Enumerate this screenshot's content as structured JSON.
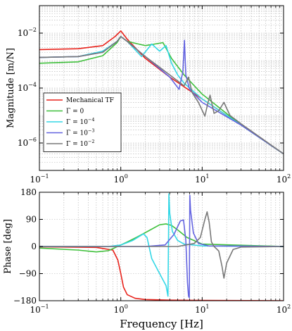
{
  "chart_data": [
    {
      "type": "line",
      "panel": "magnitude",
      "ylabel": "Magnitude [m/N]",
      "xlabel": "",
      "xscale": "log",
      "yscale": "log",
      "xlim": [
        0.1,
        100
      ],
      "ylim": [
        1e-07,
        0.1
      ],
      "grid": true,
      "legend_position": "lower-left",
      "x_ticks": [
        {
          "v": 0.1,
          "base": "10",
          "exp": "−1"
        },
        {
          "v": 1,
          "base": "10",
          "exp": "0"
        },
        {
          "v": 10,
          "base": "10",
          "exp": "1"
        },
        {
          "v": 100,
          "base": "10",
          "exp": "2"
        }
      ],
      "y_ticks": [
        {
          "v": 0.01,
          "base": "10",
          "exp": "−2"
        },
        {
          "v": 0.0001,
          "base": "10",
          "exp": "−4"
        },
        {
          "v": 1e-06,
          "base": "10",
          "exp": "−6"
        }
      ],
      "series": [
        {
          "name": "Mechanical TF",
          "color": "#e8221b",
          "x": [
            0.1,
            0.3,
            0.6,
            0.85,
            1.0,
            1.2,
            2,
            4,
            10,
            30,
            100
          ],
          "y": [
            0.0025,
            0.0027,
            0.0035,
            0.0075,
            0.012,
            0.006,
            0.0012,
            0.00025,
            4e-05,
            4.5e-06,
            4e-07
          ]
        },
        {
          "name": "Γ = 0",
          "color": "#3fc03c",
          "x": [
            0.1,
            0.3,
            0.6,
            0.9,
            1.0,
            1.2,
            2,
            3.3,
            4.2,
            6,
            10,
            30,
            100
          ],
          "y": [
            0.0008,
            0.0009,
            0.0015,
            0.0045,
            0.0075,
            0.005,
            0.0035,
            0.0045,
            0.0012,
            0.0003,
            6e-05,
            4.5e-06,
            4e-07
          ]
        },
        {
          "name": "Γ = 10^−4",
          "color": "#34d7e6",
          "x": [
            0.1,
            0.3,
            0.6,
            0.9,
            1.0,
            1.2,
            1.8,
            2.4,
            3.0,
            3.6,
            4.2,
            5.0,
            6,
            10,
            30,
            100
          ],
          "y": [
            0.0013,
            0.0014,
            0.0022,
            0.005,
            0.0075,
            0.005,
            0.0014,
            0.004,
            0.0022,
            0.0035,
            0.0008,
            0.0003,
            0.00015,
            4e-05,
            4.5e-06,
            4e-07
          ]
        },
        {
          "name": "Γ = 10^−3",
          "color": "#6464e0",
          "x": [
            0.1,
            0.3,
            0.6,
            0.9,
            1.0,
            1.2,
            2,
            4,
            5.2,
            5.8,
            6.05,
            6.3,
            7,
            10,
            30,
            100
          ],
          "y": [
            0.0013,
            0.0014,
            0.002,
            0.005,
            0.0075,
            0.005,
            0.0014,
            0.00025,
            9e-05,
            0.0004,
            0.0055,
            0.0003,
            9e-05,
            3e-05,
            4.5e-06,
            4e-07
          ]
        },
        {
          "name": "Γ = 10^−2",
          "color": "#787878",
          "x": [
            0.1,
            0.3,
            0.6,
            0.9,
            1.0,
            1.2,
            2,
            4,
            6,
            6.8,
            7.5,
            9,
            10.8,
            11.8,
            12.5,
            14,
            16,
            18.5,
            22,
            30,
            100
          ],
          "y": [
            0.0013,
            0.0014,
            0.002,
            0.005,
            0.0075,
            0.005,
            0.0014,
            0.0003,
            0.00012,
            0.00025,
            7e-05,
            3e-05,
            9.5e-06,
            3e-05,
            5.5e-05,
            1.2e-05,
            1.5e-05,
            3e-05,
            1e-05,
            5e-06,
            4e-07
          ]
        }
      ]
    },
    {
      "type": "line",
      "panel": "phase",
      "ylabel": "Phase [deg]",
      "xlabel": "Frequency [Hz]",
      "xscale": "log",
      "xlim": [
        0.1,
        100
      ],
      "ylim": [
        -180,
        180
      ],
      "grid": true,
      "x_ticks": [
        {
          "v": 0.1,
          "base": "10",
          "exp": "−1"
        },
        {
          "v": 1,
          "base": "10",
          "exp": "0"
        },
        {
          "v": 10,
          "base": "10",
          "exp": "1"
        },
        {
          "v": 100,
          "base": "10",
          "exp": "2"
        }
      ],
      "y_ticks": [
        {
          "v": 180,
          "label": "180"
        },
        {
          "v": 90,
          "label": "90"
        },
        {
          "v": 0,
          "label": "0"
        },
        {
          "v": -90,
          "label": "−90"
        },
        {
          "v": -180,
          "label": "−180"
        }
      ],
      "series": [
        {
          "name": "Mechanical TF",
          "color": "#e8221b",
          "x": [
            0.1,
            0.5,
            0.8,
            0.92,
            1.0,
            1.08,
            1.2,
            1.5,
            2,
            4,
            10,
            100
          ],
          "y": [
            -1,
            -3,
            -12,
            -45,
            -90,
            -135,
            -160,
            -172,
            -176,
            -178,
            -179,
            -180
          ]
        },
        {
          "name": "Γ = 0",
          "color": "#3fc03c",
          "x": [
            0.1,
            0.3,
            0.5,
            0.7,
            0.85,
            1.0,
            1.2,
            1.6,
            2.2,
            3.0,
            3.6,
            4.2,
            5,
            6.5,
            10,
            100
          ],
          "y": [
            -5,
            -12,
            -18,
            -14,
            -4,
            5,
            15,
            32,
            52,
            72,
            75,
            70,
            55,
            30,
            8,
            0
          ]
        },
        {
          "name": "Γ = 10^−4",
          "color": "#34d7e6",
          "x": [
            0.1,
            0.7,
            1.0,
            1.4,
            1.9,
            2.1,
            2.4,
            3.0,
            3.6,
            3.8,
            3.85,
            3.9,
            4.0,
            4.3,
            5,
            6,
            10,
            100
          ],
          "y": [
            0,
            0,
            5,
            20,
            42,
            30,
            -40,
            -90,
            -130,
            -165,
            0,
            175,
            110,
            50,
            20,
            8,
            2,
            0
          ]
        },
        {
          "name": "Γ = 10^−3",
          "color": "#6464e0",
          "x": [
            0.1,
            2,
            3.5,
            4.5,
            5.4,
            5.9,
            6.3,
            6.6,
            6.8,
            6.95,
            7.0,
            7.05,
            7.2,
            7.8,
            9,
            12,
            100
          ],
          "y": [
            0,
            0,
            5,
            40,
            85,
            88,
            20,
            -120,
            -165,
            -170,
            0,
            170,
            120,
            45,
            10,
            2,
            0
          ]
        },
        {
          "name": "Γ = 10^−2",
          "color": "#787878",
          "x": [
            0.1,
            5,
            8,
            9.5,
            10.8,
            11.5,
            12.2,
            13,
            14,
            16,
            17.5,
            18.5,
            20,
            24,
            30,
            100
          ],
          "y": [
            0,
            0,
            10,
            30,
            90,
            115,
            80,
            15,
            0,
            -15,
            -65,
            -105,
            -55,
            -10,
            -2,
            0
          ]
        }
      ]
    }
  ],
  "legend_labels": [
    {
      "series": "Mechanical TF",
      "prefix": "Mechanical TF",
      "exp": ""
    },
    {
      "series": "Γ = 0",
      "prefix": "Γ = 0",
      "exp": ""
    },
    {
      "series": "Γ = 10^−4",
      "prefix": "Γ = 10",
      "exp": "−4"
    },
    {
      "series": "Γ = 10^−3",
      "prefix": "Γ = 10",
      "exp": "−3"
    },
    {
      "series": "Γ = 10^−2",
      "prefix": "Γ = 10",
      "exp": "−2"
    }
  ]
}
